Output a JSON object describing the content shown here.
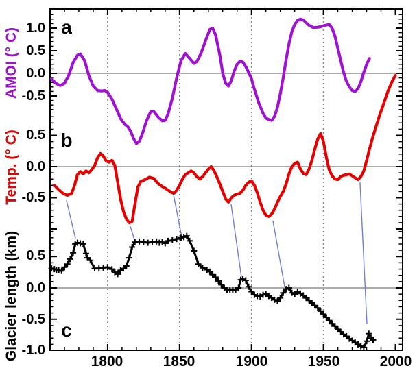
{
  "figure": {
    "panel_letters": [
      "a",
      "b",
      "c"
    ],
    "xtick_labels": [
      "1800",
      "1850",
      "1900",
      "1950",
      "2000"
    ],
    "gridline_years": [
      1800,
      1850,
      1900,
      1950
    ],
    "connector_color": "#6f7fd8",
    "zero_line_color": "#7a7a7a",
    "frame_color": "#000000"
  },
  "chart_data": [
    {
      "type": "line",
      "name": "AMOI",
      "ylabel": "AMOI (° C)",
      "color": "#a012d2",
      "x_range": [
        1760,
        2005
      ],
      "ytick_labels": [
        "1.0",
        "0.5",
        "0.0",
        "-0.5"
      ],
      "ytick_values": [
        1.0,
        0.5,
        0.0,
        -0.5
      ],
      "points": [
        [
          1761,
          -0.12
        ],
        [
          1764,
          -0.22
        ],
        [
          1767,
          -0.27
        ],
        [
          1770,
          -0.22
        ],
        [
          1773,
          -0.04
        ],
        [
          1776,
          0.24
        ],
        [
          1779,
          0.4
        ],
        [
          1781,
          0.43
        ],
        [
          1784,
          0.28
        ],
        [
          1787,
          -0.05
        ],
        [
          1790,
          -0.28
        ],
        [
          1793,
          -0.38
        ],
        [
          1796,
          -0.39
        ],
        [
          1798,
          -0.38
        ],
        [
          1800,
          -0.42
        ],
        [
          1803,
          -0.57
        ],
        [
          1806,
          -0.78
        ],
        [
          1809,
          -1.0
        ],
        [
          1812,
          -1.13
        ],
        [
          1814,
          -1.18
        ],
        [
          1816,
          -1.28
        ],
        [
          1818,
          -1.44
        ],
        [
          1820,
          -1.55
        ],
        [
          1822,
          -1.5
        ],
        [
          1824,
          -1.35
        ],
        [
          1827,
          -1.05
        ],
        [
          1830,
          -0.84
        ],
        [
          1832,
          -0.84
        ],
        [
          1835,
          -0.96
        ],
        [
          1838,
          -1.05
        ],
        [
          1840,
          -1.04
        ],
        [
          1842,
          -0.9
        ],
        [
          1845,
          -0.55
        ],
        [
          1848,
          -0.1
        ],
        [
          1851,
          0.28
        ],
        [
          1854,
          0.44
        ],
        [
          1857,
          0.33
        ],
        [
          1860,
          0.22
        ],
        [
          1862,
          0.26
        ],
        [
          1865,
          0.45
        ],
        [
          1868,
          0.72
        ],
        [
          1871,
          0.97
        ],
        [
          1873,
          1.0
        ],
        [
          1875,
          0.85
        ],
        [
          1878,
          0.4
        ],
        [
          1880,
          0.0
        ],
        [
          1882,
          -0.22
        ],
        [
          1884,
          -0.28
        ],
        [
          1886,
          -0.16
        ],
        [
          1888,
          0.05
        ],
        [
          1890,
          0.2
        ],
        [
          1892,
          0.27
        ],
        [
          1894,
          0.25
        ],
        [
          1896,
          0.15
        ],
        [
          1898,
          0.02
        ],
        [
          1900,
          -0.12
        ],
        [
          1902,
          -0.35
        ],
        [
          1905,
          -0.65
        ],
        [
          1908,
          -0.88
        ],
        [
          1910,
          -0.99
        ],
        [
          1912,
          -1.02
        ],
        [
          1914,
          -1.04
        ],
        [
          1916,
          -0.95
        ],
        [
          1918,
          -0.75
        ],
        [
          1920,
          -0.45
        ],
        [
          1922,
          -0.1
        ],
        [
          1924,
          0.3
        ],
        [
          1926,
          0.65
        ],
        [
          1928,
          0.92
        ],
        [
          1930,
          1.08
        ],
        [
          1932,
          1.17
        ],
        [
          1934,
          1.2
        ],
        [
          1936,
          1.18
        ],
        [
          1938,
          1.12
        ],
        [
          1940,
          1.06
        ],
        [
          1943,
          1.01
        ],
        [
          1946,
          1.02
        ],
        [
          1948,
          1.03
        ],
        [
          1951,
          1.06
        ],
        [
          1954,
          1.08
        ],
        [
          1956,
          1.0
        ],
        [
          1958,
          0.82
        ],
        [
          1960,
          0.55
        ],
        [
          1962,
          0.28
        ],
        [
          1964,
          0.02
        ],
        [
          1966,
          -0.18
        ],
        [
          1968,
          -0.3
        ],
        [
          1970,
          -0.38
        ],
        [
          1972,
          -0.4
        ],
        [
          1974,
          -0.34
        ],
        [
          1976,
          -0.18
        ],
        [
          1978,
          0.02
        ],
        [
          1980,
          0.2
        ],
        [
          1982,
          0.33
        ]
      ]
    },
    {
      "type": "line",
      "name": "Temp",
      "ylabel": "Temp. (° C)",
      "color": "#e60000",
      "x_range": [
        1760,
        2005
      ],
      "ytick_labels": [
        "0.5",
        "0.0",
        "-0.5"
      ],
      "ytick_values": [
        0.5,
        0.0,
        -0.5
      ],
      "points": [
        [
          1763,
          -0.3
        ],
        [
          1766,
          -0.37
        ],
        [
          1769,
          -0.43
        ],
        [
          1772,
          -0.46
        ],
        [
          1775,
          -0.43
        ],
        [
          1777,
          -0.3
        ],
        [
          1779,
          -0.13
        ],
        [
          1781,
          -0.08
        ],
        [
          1783,
          -0.12
        ],
        [
          1785,
          -0.07
        ],
        [
          1787,
          -0.1
        ],
        [
          1789,
          -0.05
        ],
        [
          1791,
          0.02
        ],
        [
          1793,
          0.14
        ],
        [
          1795,
          0.21
        ],
        [
          1797,
          0.17
        ],
        [
          1799,
          0.09
        ],
        [
          1801,
          0.07
        ],
        [
          1803,
          0.1
        ],
        [
          1805,
          0.02
        ],
        [
          1807,
          -0.25
        ],
        [
          1809,
          -0.52
        ],
        [
          1811,
          -0.72
        ],
        [
          1813,
          -0.84
        ],
        [
          1815,
          -0.9
        ],
        [
          1817,
          -0.88
        ],
        [
          1819,
          -0.6
        ],
        [
          1821,
          -0.33
        ],
        [
          1823,
          -0.24
        ],
        [
          1826,
          -0.21
        ],
        [
          1829,
          -0.17
        ],
        [
          1832,
          -0.19
        ],
        [
          1835,
          -0.27
        ],
        [
          1838,
          -0.32
        ],
        [
          1841,
          -0.36
        ],
        [
          1844,
          -0.41
        ],
        [
          1846,
          -0.43
        ],
        [
          1848,
          -0.38
        ],
        [
          1850,
          -0.3
        ],
        [
          1852,
          -0.2
        ],
        [
          1854,
          -0.13
        ],
        [
          1856,
          -0.1
        ],
        [
          1858,
          -0.07
        ],
        [
          1860,
          -0.1
        ],
        [
          1862,
          -0.16
        ],
        [
          1864,
          -0.2
        ],
        [
          1866,
          -0.16
        ],
        [
          1868,
          -0.1
        ],
        [
          1870,
          -0.04
        ],
        [
          1872,
          0.0
        ],
        [
          1874,
          -0.07
        ],
        [
          1876,
          -0.17
        ],
        [
          1878,
          -0.28
        ],
        [
          1880,
          -0.4
        ],
        [
          1882,
          -0.52
        ],
        [
          1884,
          -0.57
        ],
        [
          1886,
          -0.5
        ],
        [
          1888,
          -0.46
        ],
        [
          1890,
          -0.44
        ],
        [
          1892,
          -0.43
        ],
        [
          1894,
          -0.38
        ],
        [
          1896,
          -0.3
        ],
        [
          1898,
          -0.25
        ],
        [
          1900,
          -0.23
        ],
        [
          1902,
          -0.3
        ],
        [
          1904,
          -0.42
        ],
        [
          1906,
          -0.57
        ],
        [
          1908,
          -0.7
        ],
        [
          1910,
          -0.78
        ],
        [
          1912,
          -0.8
        ],
        [
          1914,
          -0.76
        ],
        [
          1916,
          -0.68
        ],
        [
          1918,
          -0.57
        ],
        [
          1920,
          -0.48
        ],
        [
          1922,
          -0.4
        ],
        [
          1924,
          -0.28
        ],
        [
          1926,
          -0.12
        ],
        [
          1928,
          0.0
        ],
        [
          1930,
          0.05
        ],
        [
          1932,
          0.07
        ],
        [
          1934,
          -0.04
        ],
        [
          1936,
          -0.11
        ],
        [
          1938,
          -0.13
        ],
        [
          1940,
          -0.04
        ],
        [
          1942,
          0.1
        ],
        [
          1944,
          0.28
        ],
        [
          1946,
          0.44
        ],
        [
          1948,
          0.53
        ],
        [
          1950,
          0.4
        ],
        [
          1952,
          0.15
        ],
        [
          1954,
          -0.05
        ],
        [
          1956,
          -0.15
        ],
        [
          1958,
          -0.2
        ],
        [
          1960,
          -0.21
        ],
        [
          1962,
          -0.16
        ],
        [
          1964,
          -0.14
        ],
        [
          1966,
          -0.13
        ],
        [
          1968,
          -0.12
        ],
        [
          1970,
          -0.15
        ],
        [
          1972,
          -0.18
        ],
        [
          1974,
          -0.21
        ],
        [
          1976,
          -0.16
        ],
        [
          1978,
          -0.07
        ],
        [
          1980,
          0.1
        ],
        [
          1982,
          0.28
        ],
        [
          1984,
          0.45
        ],
        [
          1986,
          0.6
        ],
        [
          1989,
          0.82
        ],
        [
          1992,
          1.02
        ],
        [
          1995,
          1.22
        ],
        [
          1998,
          1.38
        ],
        [
          2000,
          1.46
        ]
      ]
    },
    {
      "type": "line",
      "name": "Glacier length",
      "ylabel": "Glacier length (km)",
      "color": "#000000",
      "marker": "+",
      "x_range": [
        1760,
        2005
      ],
      "ytick_labels": [
        "0.5",
        "0.0",
        "-0.5",
        "-1.0"
      ],
      "ytick_values": [
        0.5,
        0.0,
        -0.5,
        -1.0
      ],
      "points": [
        [
          1761,
          0.31
        ],
        [
          1763,
          0.3
        ],
        [
          1764.5,
          0.29
        ],
        [
          1766,
          0.28
        ],
        [
          1768,
          0.27
        ],
        [
          1770,
          0.33
        ],
        [
          1772,
          0.38
        ],
        [
          1774,
          0.46
        ],
        [
          1776,
          0.56
        ],
        [
          1777.5,
          0.7
        ],
        [
          1779,
          0.72
        ],
        [
          1781,
          0.71
        ],
        [
          1783,
          0.7
        ],
        [
          1785,
          0.55
        ],
        [
          1786,
          0.48
        ],
        [
          1788,
          0.44
        ],
        [
          1791,
          0.31
        ],
        [
          1794,
          0.31
        ],
        [
          1797,
          0.32
        ],
        [
          1800,
          0.33
        ],
        [
          1803,
          0.3
        ],
        [
          1805,
          0.25
        ],
        [
          1807,
          0.22
        ],
        [
          1809,
          0.28
        ],
        [
          1811,
          0.31
        ],
        [
          1813,
          0.35
        ],
        [
          1815,
          0.48
        ],
        [
          1817,
          0.65
        ],
        [
          1819,
          0.73
        ],
        [
          1822,
          0.74
        ],
        [
          1825,
          0.73
        ],
        [
          1828,
          0.72
        ],
        [
          1831,
          0.73
        ],
        [
          1834,
          0.74
        ],
        [
          1836,
          0.72
        ],
        [
          1838,
          0.73
        ],
        [
          1840,
          0.71
        ],
        [
          1842,
          0.75
        ],
        [
          1845,
          0.76
        ],
        [
          1848,
          0.78
        ],
        [
          1851,
          0.8
        ],
        [
          1853,
          0.81
        ],
        [
          1855,
          0.83
        ],
        [
          1857,
          0.75
        ],
        [
          1860,
          0.59
        ],
        [
          1863,
          0.38
        ],
        [
          1866,
          0.32
        ],
        [
          1869,
          0.29
        ],
        [
          1871,
          0.26
        ],
        [
          1873,
          0.21
        ],
        [
          1875,
          0.17
        ],
        [
          1877,
          0.11
        ],
        [
          1879,
          0.05
        ],
        [
          1881,
          0.0
        ],
        [
          1883,
          -0.03
        ],
        [
          1885,
          -0.03
        ],
        [
          1887,
          -0.03
        ],
        [
          1889,
          -0.03
        ],
        [
          1891,
          0.0
        ],
        [
          1892.5,
          0.13
        ],
        [
          1894,
          0.14
        ],
        [
          1896,
          0.12
        ],
        [
          1898,
          0.02
        ],
        [
          1900,
          -0.06
        ],
        [
          1902,
          -0.11
        ],
        [
          1904,
          -0.13
        ],
        [
          1906,
          -0.14
        ],
        [
          1908,
          -0.11
        ],
        [
          1910,
          -0.1
        ],
        [
          1912,
          -0.13
        ],
        [
          1914,
          -0.16
        ],
        [
          1916,
          -0.19
        ],
        [
          1918,
          -0.21
        ],
        [
          1920,
          -0.16
        ],
        [
          1922,
          -0.08
        ],
        [
          1924,
          -0.02
        ],
        [
          1926,
          0.0
        ],
        [
          1928,
          -0.08
        ],
        [
          1930,
          -0.1
        ],
        [
          1932,
          -0.06
        ],
        [
          1934,
          -0.09
        ],
        [
          1936,
          -0.12
        ],
        [
          1938,
          -0.16
        ],
        [
          1940,
          -0.2
        ],
        [
          1942,
          -0.24
        ],
        [
          1944,
          -0.28
        ],
        [
          1946,
          -0.32
        ],
        [
          1948,
          -0.37
        ],
        [
          1950,
          -0.42
        ],
        [
          1952,
          -0.47
        ],
        [
          1954,
          -0.52
        ],
        [
          1956,
          -0.57
        ],
        [
          1958,
          -0.61
        ],
        [
          1960,
          -0.66
        ],
        [
          1962,
          -0.7
        ],
        [
          1964,
          -0.74
        ],
        [
          1966,
          -0.77
        ],
        [
          1968,
          -0.81
        ],
        [
          1970,
          -0.84
        ],
        [
          1972,
          -0.87
        ],
        [
          1974,
          -0.9
        ],
        [
          1976,
          -0.93
        ],
        [
          1978,
          -0.95
        ],
        [
          1980,
          -0.85
        ],
        [
          1981.5,
          -0.73
        ],
        [
          1983,
          -0.8
        ],
        [
          1984.5,
          -0.83
        ]
      ]
    }
  ],
  "connectors": [
    {
      "from": [
        1771.4,
        -0.54
      ],
      "to": [
        1777.6,
        0.79
      ]
    },
    {
      "from": [
        1815.8,
        -0.96
      ],
      "to": [
        1818.6,
        0.77
      ]
    },
    {
      "from": [
        1845.8,
        -0.45
      ],
      "to": [
        1851.1,
        0.86
      ]
    },
    {
      "from": [
        1885.8,
        -0.6
      ],
      "to": [
        1893.0,
        0.17
      ]
    },
    {
      "from": [
        1914.9,
        -0.87
      ],
      "to": [
        1923.0,
        0.02
      ]
    },
    {
      "from": [
        1975.4,
        -0.25
      ],
      "to": [
        1980.2,
        -0.57
      ]
    }
  ]
}
